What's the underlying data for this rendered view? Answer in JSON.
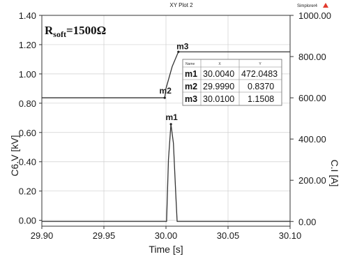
{
  "chart_data": {
    "type": "line",
    "title": "XY Plot 2",
    "top_right_label": "Simplorer4",
    "annotation": {
      "main": "R",
      "subscript": "soft",
      "value": "=1500Ω"
    },
    "xlabel": "Time [s]",
    "ylabel_left": "C6.V [kV]",
    "ylabel_right": "C.I [A]",
    "xlim": [
      29.9,
      30.1
    ],
    "ylim_left": [
      -0.04,
      1.4
    ],
    "ylim_right": [
      -22.86,
      1000.0
    ],
    "x_ticks": [
      29.9,
      29.95,
      30.0,
      30.05,
      30.1
    ],
    "x_tick_labels": [
      "29.90",
      "29.95",
      "30.00",
      "30.05",
      "30.10"
    ],
    "y_left_ticks": [
      0.0,
      0.2,
      0.4,
      0.6,
      0.8,
      1.0,
      1.2,
      1.4
    ],
    "y_left_tick_labels": [
      "0.00",
      "0.20",
      "0.40",
      "0.60",
      "0.80",
      "1.00",
      "1.20",
      "1.40"
    ],
    "y_right_ticks": [
      0,
      200,
      400,
      600,
      800,
      1000
    ],
    "y_right_tick_labels": [
      "0.00",
      "200.00",
      "400.00",
      "600.00",
      "800.00",
      "1000.00"
    ],
    "grid": true,
    "series": [
      {
        "axis": "left",
        "color": "#333333",
        "x": [
          29.9,
          29.999,
          30.0,
          30.005,
          30.01,
          30.1
        ],
        "y": [
          0.837,
          0.837,
          0.9,
          1.05,
          1.151,
          1.151
        ]
      },
      {
        "axis": "right",
        "color": "#333333",
        "x": [
          29.9,
          30.0005,
          30.002,
          30.004,
          30.006,
          30.008,
          30.009,
          30.1
        ],
        "y": [
          0,
          0,
          300,
          472.05,
          380,
          120,
          0,
          0
        ]
      }
    ],
    "markers": [
      {
        "name": "m1",
        "x": 30.004,
        "y": 472.0483,
        "axis": "right"
      },
      {
        "name": "m2",
        "x": 29.999,
        "y": 0.837,
        "axis": "left"
      },
      {
        "name": "m3",
        "x": 30.01,
        "y": 1.1508,
        "axis": "left"
      }
    ],
    "marker_table": {
      "headers": [
        "Name",
        "X",
        "Y"
      ],
      "rows": [
        [
          "m1",
          "30.0040",
          "472.0483"
        ],
        [
          "m2",
          "29.9990",
          "0.8370"
        ],
        [
          "m3",
          "30.0100",
          "1.1508"
        ]
      ]
    }
  }
}
